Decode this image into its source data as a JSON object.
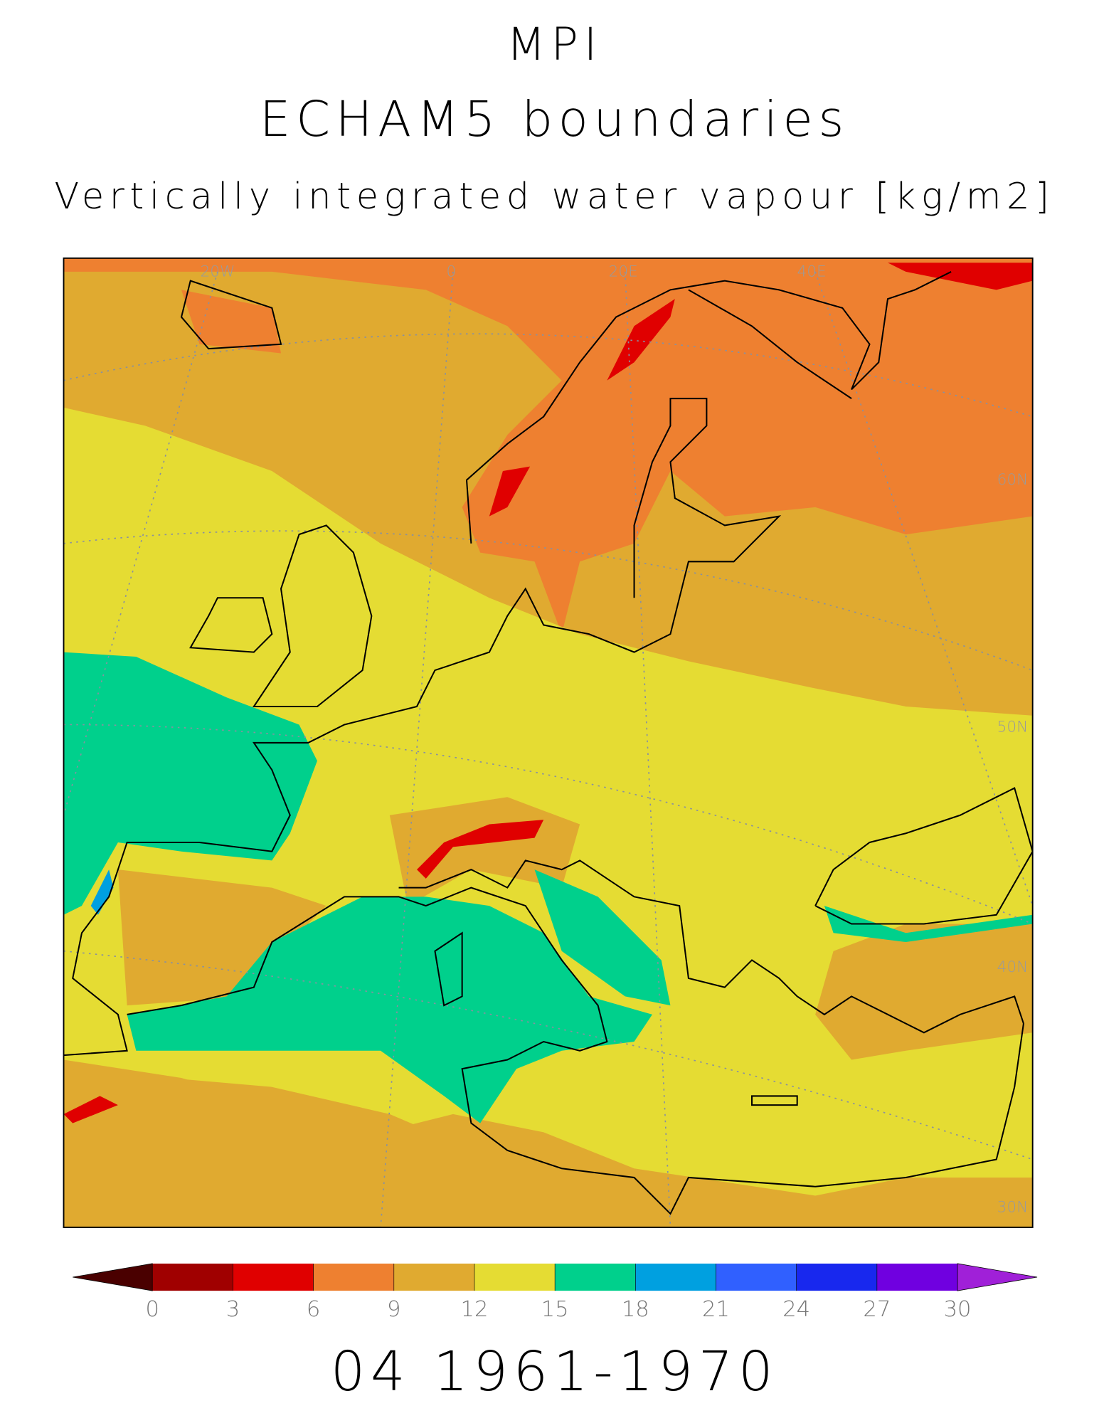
{
  "header": {
    "model": "MPI",
    "boundaries": "ECHAM5 boundaries",
    "variable": "Vertically integrated water vapour [kg/m2]"
  },
  "map": {
    "lon_labels": [
      "20W",
      "0",
      "20E",
      "40E"
    ],
    "lat_labels": [
      "60N",
      "50N",
      "40N",
      "30N"
    ]
  },
  "colorbar": {
    "ticks": [
      0,
      3,
      6,
      9,
      12,
      15,
      18,
      21,
      24,
      27,
      30
    ],
    "under_color": "#4a0000",
    "over_color": "#a020d8",
    "colors": [
      "#a00000",
      "#e00000",
      "#ee8030",
      "#e0aa30",
      "#e5dc33",
      "#00d08c",
      "#00a0e0",
      "#3060ff",
      "#1828ee",
      "#7000e0"
    ]
  },
  "footer": {
    "period": "04 1961-1970"
  }
}
